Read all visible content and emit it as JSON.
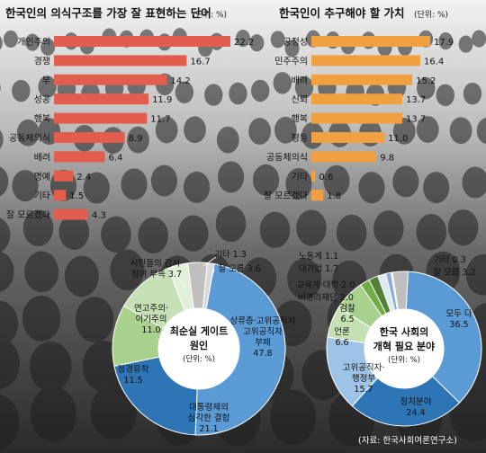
{
  "chart_data": [
    {
      "type": "bar",
      "title": "한국인의 의식구조를 가장 잘 표현하는 단어",
      "unit": "(단위: %)",
      "categories": [
        "개인주의",
        "경쟁",
        "부",
        "성공",
        "행복",
        "공동체의식",
        "배려",
        "명예",
        "기타",
        "잘 모르겠다"
      ],
      "values": [
        22.2,
        16.7,
        14.2,
        11.9,
        11.7,
        8.9,
        6.4,
        2.4,
        1.5,
        4.3
      ],
      "value_labels": [
        "22.2",
        "16.7",
        "14.2",
        "11.9",
        "11.7",
        "8.9",
        "6.4",
        "2.4",
        "1.5",
        "4.3"
      ],
      "color": "#e35d4e"
    },
    {
      "type": "bar",
      "title": "한국인이 추구해야 할 가치",
      "unit": "(단위: %)",
      "categories": [
        "공정성",
        "민주주의",
        "배려",
        "신뢰",
        "행복",
        "평등",
        "공동체의식",
        "기타",
        "잘 모르겠다"
      ],
      "values": [
        17.9,
        16.4,
        15.2,
        13.7,
        13.7,
        11.0,
        9.8,
        0.6,
        1.8
      ],
      "value_labels": [
        "17.9",
        "16.4",
        "15.2",
        "13.7",
        "13.7",
        "11.0",
        "9.8",
        "0.6",
        "1.8"
      ],
      "color": "#f0a040"
    },
    {
      "type": "pie",
      "title": "최순실 게이트 원인",
      "unit": "(단위: %)",
      "slices": [
        {
          "label": "상류층·고위공직자 부패",
          "value": 47.8,
          "value_label": "47.8",
          "color": "#5b9bd5"
        },
        {
          "label": "대통령제의 심각한 결함",
          "value": 21.1,
          "value_label": "21.1",
          "color": "#2e75b6"
        },
        {
          "label": "정경유착",
          "value": 11.5,
          "value_label": "11.5",
          "color": "#a9d18e"
        },
        {
          "label": "연고주의·이기주의",
          "value": 11.0,
          "value_label": "11.0",
          "color": "#c5e0b4"
        },
        {
          "label": "시민들의 감시·참여 부족",
          "value": 3.7,
          "value_label": "3.7",
          "color": "#e2f0d9"
        },
        {
          "label": "잘 모름",
          "value": 3.6,
          "value_label": "3.6",
          "color": "#bfbfbf"
        },
        {
          "label": "기타",
          "value": 1.3,
          "value_label": "1.3",
          "color": "#d9d9d9"
        }
      ]
    },
    {
      "type": "pie",
      "title": "한국 사회의 개혁 필요 분야",
      "unit": "(단위: %)",
      "slices": [
        {
          "label": "모두 다",
          "value": 36.5,
          "value_label": "36.5",
          "color": "#5b9bd5"
        },
        {
          "label": "정치분야",
          "value": 24.4,
          "value_label": "24.4",
          "color": "#2e75b6"
        },
        {
          "label": "고위공직자·행정부",
          "value": 15.7,
          "value_label": "15.7",
          "color": "#9dc3e6"
        },
        {
          "label": "언론",
          "value": 6.6,
          "value_label": "6.6",
          "color": "#c5e0b4"
        },
        {
          "label": "검찰",
          "value": 6.5,
          "value_label": "6.5",
          "color": "#a9d18e"
        },
        {
          "label": "비영리재단",
          "value": 2.0,
          "value_label": "2.0",
          "color": "#70ad47"
        },
        {
          "label": "교육계·대학",
          "value": 2.0,
          "value_label": "2.0",
          "color": "#548235"
        },
        {
          "label": "대기업",
          "value": 1.7,
          "value_label": "1.7",
          "color": "#deebf7"
        },
        {
          "label": "노동계",
          "value": 1.1,
          "value_label": "1.1",
          "color": "#8faadc"
        },
        {
          "label": "기타",
          "value": 0.3,
          "value_label": "0.3",
          "color": "#d9d9d9"
        },
        {
          "label": "잘 모름",
          "value": 3.2,
          "value_label": "3.2",
          "color": "#bfbfbf"
        }
      ]
    }
  ],
  "source": "(자료: 한국사회여론연구소)"
}
